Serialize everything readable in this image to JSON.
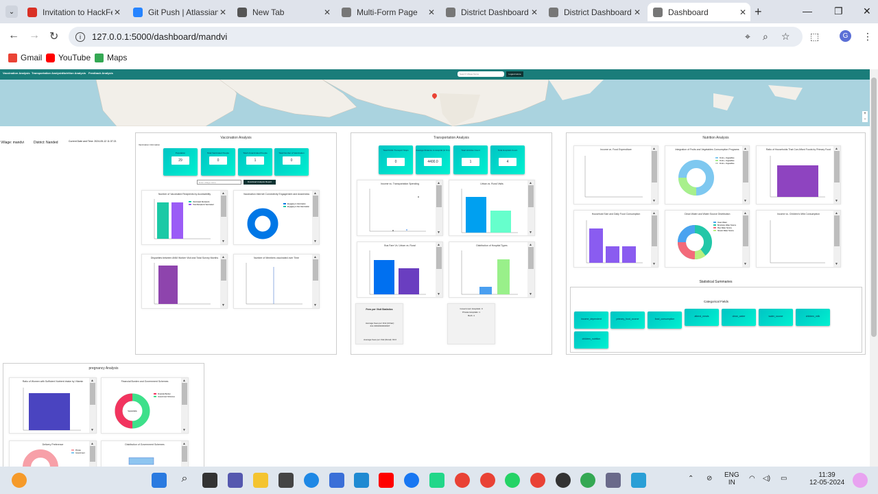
{
  "browser": {
    "tabs": [
      {
        "title": "Invitation to HackFes",
        "icon": "gmail-icon",
        "color": "#d93025"
      },
      {
        "title": "Git Push | Atlassian G",
        "icon": "atlassian-icon",
        "color": "#2684ff"
      },
      {
        "title": "New Tab",
        "icon": "chrome-icon",
        "color": "#555555"
      },
      {
        "title": "Multi-Form Page",
        "icon": "globe-icon",
        "color": "#777777"
      },
      {
        "title": "District Dashboard",
        "icon": "globe-icon",
        "color": "#777777"
      },
      {
        "title": "District Dashboard",
        "icon": "globe-icon",
        "color": "#777777"
      },
      {
        "title": "Dashboard",
        "icon": "globe-icon",
        "color": "#777777",
        "active": true
      }
    ],
    "url": "127.0.0.1:5000/dashboard/mandvi",
    "bookmarks": [
      {
        "label": "Gmail",
        "icon": "gmail-icon"
      },
      {
        "label": "YouTube",
        "icon": "youtube-icon"
      },
      {
        "label": "Maps",
        "icon": "maps-icon"
      }
    ],
    "profile_initial": "G"
  },
  "app": {
    "nav": [
      "Vaccination Analysis",
      "Transportation Analysis",
      "Nutrition Analysis",
      "Feedback Analysis"
    ],
    "search_placeholder": "Search Village Name",
    "logout": "Logout Home",
    "village": "Village: mandvi",
    "district": "District: Nanded",
    "datetime": "Current Date and Time: 2024-05-12 11:37:21"
  },
  "vaccination": {
    "title": "Vaccination Analysis",
    "subtitle": "Vaccination Information",
    "stats": [
      {
        "label": "Population",
        "value": "29"
      },
      {
        "label": "Total Vaccinated People",
        "value": "0"
      },
      {
        "label": "Total Unvaccinated People",
        "value": "1"
      },
      {
        "label": "Total Number of Vaccination",
        "value": "0"
      }
    ],
    "search_placeholder": "Enter village name",
    "download_label": "Download Analysis Report",
    "chart1_title": "Number of Vaccinated Recipients by Accessibility",
    "chart1_legend": [
      "Vaccinated Recipients",
      "Total Recipients Vaccinated"
    ],
    "chart2_title": "Vaccination Internet Connectivity Engagement and Awareness",
    "chart2_legend": [
      "Engaging in Vaccination",
      "Engaging in Non-Vaccination"
    ],
    "chart3_title": "Disparities between ANM Worker Visit and Total Survey Months",
    "chart4_title": "Number of Members vaccinated over Time"
  },
  "transportation": {
    "title": "Transportation Analysis",
    "stats": [
      {
        "label": "Total Public Transport Stops",
        "value": "0"
      },
      {
        "label": "Average Distance to Hospital (in Km)",
        "value": "4400.0"
      },
      {
        "label": "Total Vehicles Count",
        "value": "1"
      },
      {
        "label": "Total Hospitals Count",
        "value": "4"
      }
    ],
    "chart1_title": "Income vs. Transportation Spending",
    "chart2_title": "Urban vs. Rural Visits",
    "chart3_title": "Bus Fare Vs. Urban vs. Rural",
    "chart4_title": "Distribution of Hospital Types",
    "fees_title": "Fees per Visit Statistics",
    "fees_line1": "Average Fees per Visit (Urban): 211.33333333333337",
    "fees_line2": "Average Fees per Visit (Rural): 93.0",
    "hospitals": [
      "Government Hospitals: 0",
      "Private Hospitals: 1",
      "Both: 4"
    ]
  },
  "nutrition": {
    "title": "Nutrition Analysis",
    "chart1_title": "Income vs. Food Expenditure",
    "chart2_title": "Integration of Fruits and Vegetables Consumption Programs",
    "chart2_legend": [
      "Fruits + Vegetables",
      "Fruits + Vegetables",
      "Fruits + Vegetables"
    ],
    "chart3_title": "Ratio of Households That Can Afford Foods by Primary Food",
    "chart4_title": "Household Size and Daily Food Consumption",
    "chart5_title": "Clean Water and Water Source Distribution",
    "chart5_legend": [
      "Clean Water",
      "Boreholes Water Source",
      "Pipe Water Source",
      "Stream Water Source"
    ],
    "chart6_title": "Income vs. Children's Milk Consumption",
    "summary_title": "Statistical Summaries",
    "cat_title": "Categorical Fields",
    "cat_fields": [
      "income_dependent",
      "primary_food_source",
      "food_consumption",
      "attend_meals",
      "clean_water",
      "water_source",
      "children_milk",
      "children_nutrition"
    ]
  },
  "pregnancy": {
    "title": "pregnancy Analysis",
    "chart1_title": "Ratio of Women with Sufficient Nutrient Intake by Vitamin",
    "chart2_title": "Financial Burden and Government Schemes",
    "chart2_legend": [
      "Financial Burden",
      "Government Schemes"
    ],
    "chart2_center": "Supportable",
    "chart3_title": "Delivery Preference",
    "chart3_legend": [
      "Private",
      "Government"
    ],
    "chart4_title": "Distribution of Government Schemes"
  },
  "taskbar": {
    "lang1": "ENG",
    "lang2": "IN",
    "time": "11:39",
    "date": "12-05-2024"
  }
}
